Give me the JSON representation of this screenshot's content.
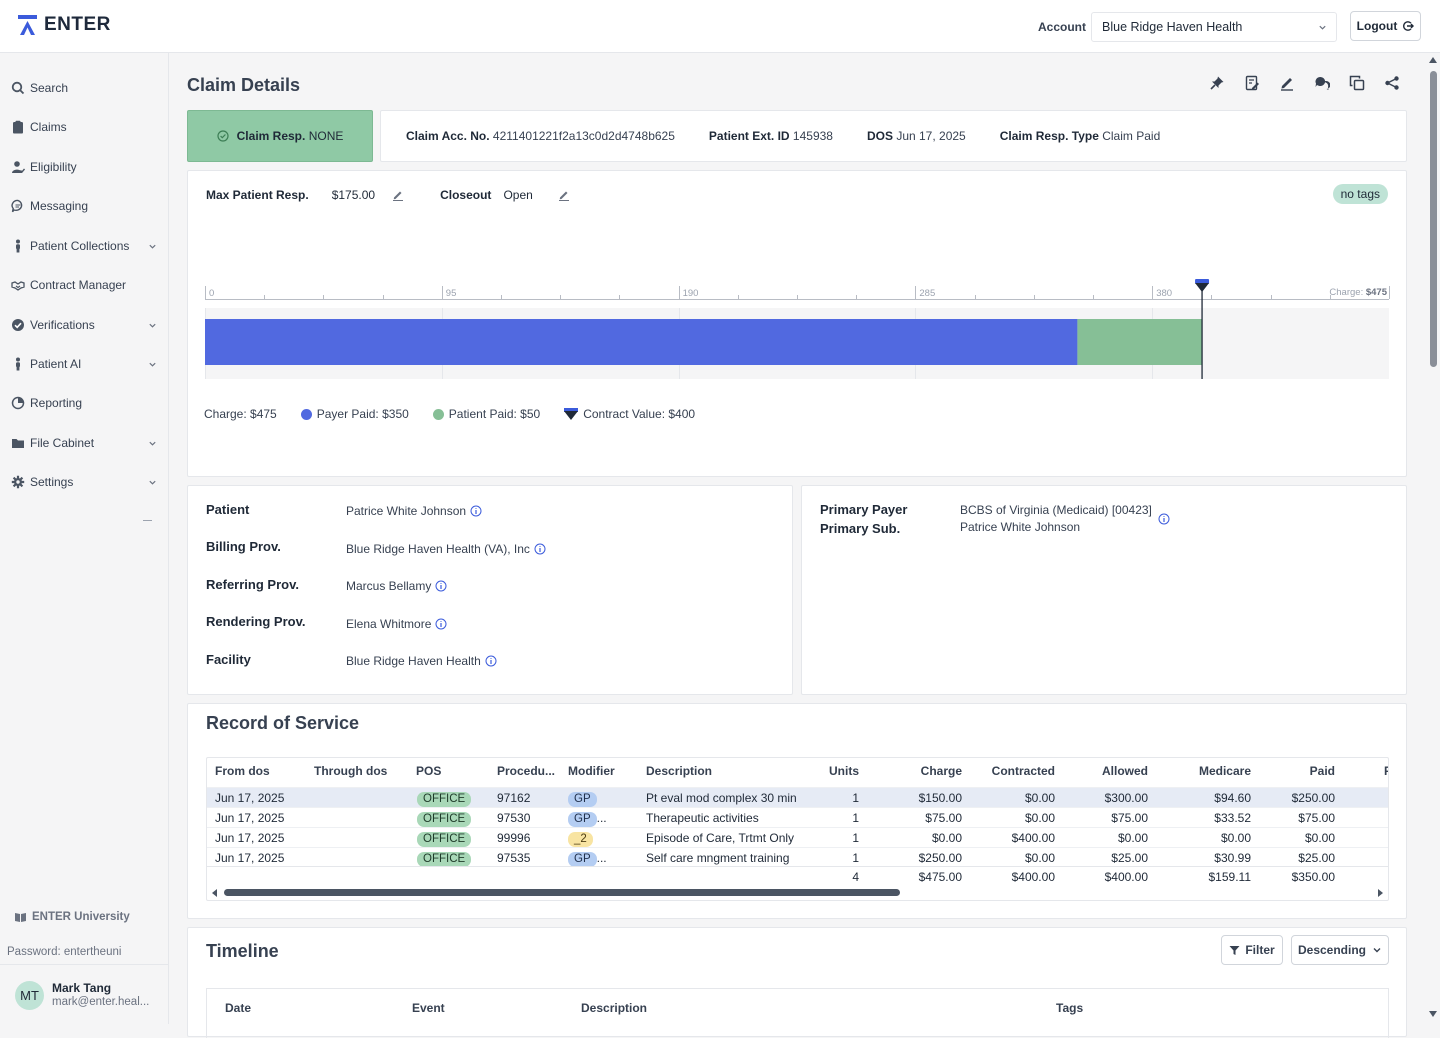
{
  "app": {
    "name": "ENTER"
  },
  "header": {
    "account_label": "Account",
    "account_value": "Blue Ridge Haven Health",
    "logout_label": "Logout"
  },
  "sidebar": {
    "items": [
      {
        "label": "Search",
        "icon": "search-icon"
      },
      {
        "label": "Claims",
        "icon": "clipboard-icon"
      },
      {
        "label": "Eligibility",
        "icon": "user-check-icon"
      },
      {
        "label": "Messaging",
        "icon": "message-icon"
      },
      {
        "label": "Patient Collections",
        "icon": "person-icon",
        "expandable": true
      },
      {
        "label": "Contract Manager",
        "icon": "handshake-icon"
      },
      {
        "label": "Verifications",
        "icon": "check-circle-icon",
        "expandable": true
      },
      {
        "label": "Patient AI",
        "icon": "person-icon",
        "expandable": true
      },
      {
        "label": "Reporting",
        "icon": "pie-chart-icon"
      },
      {
        "label": "File Cabinet",
        "icon": "folder-icon",
        "expandable": true
      },
      {
        "label": "Settings",
        "icon": "gear-icon",
        "expandable": true
      }
    ],
    "university_label": "ENTER University",
    "password_text": "Password: entertheuni",
    "user": {
      "initials": "MT",
      "name": "Mark Tang",
      "email": "mark@enter.heal..."
    }
  },
  "page": {
    "title": "Claim Details"
  },
  "claim": {
    "resp_label": "Claim Resp.",
    "resp_value": "NONE",
    "acc_no_label": "Claim Acc. No.",
    "acc_no_value": "4211401221f2a13c0d2d4748b625",
    "patient_ext_label": "Patient Ext. ID",
    "patient_ext_value": "145938",
    "dos_label": "DOS",
    "dos_value": "Jun 17, 2025",
    "resp_type_label": "Claim Resp. Type",
    "resp_type_value": "Claim Paid"
  },
  "summary": {
    "max_resp_label": "Max Patient Resp.",
    "max_resp_value": "$175.00",
    "closeout_label": "Closeout",
    "closeout_value": "Open",
    "tags_label": "no tags"
  },
  "chart_data": {
    "type": "bar",
    "orientation": "horizontal-stacked",
    "axis_ticks": [
      "0",
      "95",
      "190",
      "285",
      "380"
    ],
    "axis_end_label_prefix": "Charge:",
    "axis_end_label_value": "$475",
    "xlim": [
      0,
      475
    ],
    "segments": [
      {
        "name": "Payer Paid",
        "value": 350,
        "color": "#5169e0"
      },
      {
        "name": "Patient Paid",
        "value": 50,
        "color": "#86bf96"
      }
    ],
    "charge": 475,
    "contract_value": 400,
    "legend": {
      "charge": "Charge: $475",
      "payer": "Payer Paid: $350",
      "patient": "Patient Paid: $50",
      "contract": "Contract Value: $400"
    }
  },
  "parties": {
    "left": [
      {
        "label": "Patient",
        "value": "Patrice White Johnson"
      },
      {
        "label": "Billing Prov.",
        "value": "Blue Ridge Haven Health (VA), Inc"
      },
      {
        "label": "Referring Prov.",
        "value": "Marcus Bellamy"
      },
      {
        "label": "Rendering Prov.",
        "value": "Elena Whitmore"
      },
      {
        "label": "Facility",
        "value": "Blue Ridge Haven Health"
      }
    ],
    "right": {
      "payer_label": "Primary Payer",
      "sub_label": "Primary Sub.",
      "payer_value": "BCBS of Virginia (Medicaid) [00423]",
      "sub_value": "Patrice White Johnson"
    }
  },
  "ros": {
    "title": "Record of Service",
    "columns": [
      "From dos",
      "Through dos",
      "POS",
      "Procedu...",
      "Modifier",
      "Description",
      "Units",
      "Charge",
      "Contracted",
      "Allowed",
      "Medicare",
      "Paid",
      "P"
    ],
    "rows": [
      {
        "from": "Jun 17, 2025",
        "pos": "OFFICE",
        "proc": "97162",
        "mod": "GP",
        "mod_more": "",
        "desc": "Pt eval mod complex 30 min",
        "units": "1",
        "charge": "$150.00",
        "contracted": "$0.00",
        "allowed": "$300.00",
        "medicare": "$94.60",
        "paid": "$250.00"
      },
      {
        "from": "Jun 17, 2025",
        "pos": "OFFICE",
        "proc": "97530",
        "mod": "GP",
        "mod_more": "...",
        "desc": "Therapeutic activities",
        "units": "1",
        "charge": "$75.00",
        "contracted": "$0.00",
        "allowed": "$75.00",
        "medicare": "$33.52",
        "paid": "$75.00"
      },
      {
        "from": "Jun 17, 2025",
        "pos": "OFFICE",
        "proc": "99996",
        "mod": "_2",
        "mod_more": "",
        "desc": "Episode of Care, Trtmt Only",
        "units": "1",
        "charge": "$0.00",
        "contracted": "$400.00",
        "allowed": "$0.00",
        "medicare": "$0.00",
        "paid": "$0.00"
      },
      {
        "from": "Jun 17, 2025",
        "pos": "OFFICE",
        "proc": "97535",
        "mod": "GP",
        "mod_more": "...",
        "desc": "Self care mngment training",
        "units": "1",
        "charge": "$250.00",
        "contracted": "$0.00",
        "allowed": "$25.00",
        "medicare": "$30.99",
        "paid": "$25.00"
      }
    ],
    "totals": {
      "units": "4",
      "charge": "$475.00",
      "contracted": "$400.00",
      "allowed": "$400.00",
      "medicare": "$159.11",
      "paid": "$350.00"
    }
  },
  "timeline": {
    "title": "Timeline",
    "filter_label": "Filter",
    "order_label": "Descending",
    "columns": [
      "Date",
      "Event",
      "Description",
      "Tags"
    ]
  },
  "colors": {
    "brand": "#3b5bdb",
    "payer": "#5169e0",
    "patient": "#86bf96",
    "resp_box": "#8fc9a5"
  }
}
